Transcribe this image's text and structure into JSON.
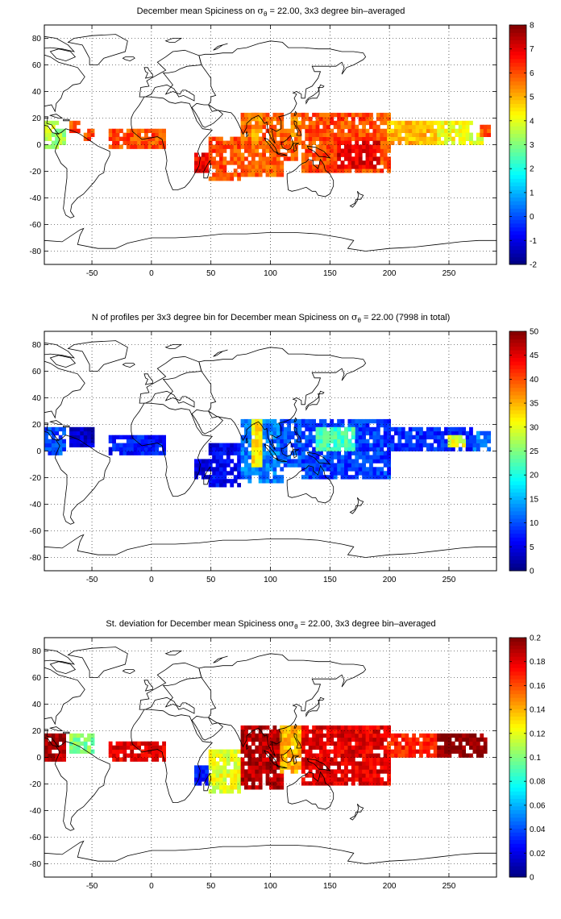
{
  "chart_data": [
    {
      "type": "heatmap",
      "title": {
        "prefix": "December mean Spiciness on ",
        "symbol": "σ",
        "subscript": "θ",
        "suffix": " = 22.00, 3x3 degree bin–averaged"
      },
      "xlim": [
        -90,
        290
      ],
      "ylim": [
        -90,
        90
      ],
      "xticks": [
        -50,
        0,
        50,
        100,
        150,
        200,
        250
      ],
      "yticks": [
        -80,
        -60,
        -40,
        -20,
        0,
        20,
        40,
        60,
        80
      ],
      "grid": "dotted",
      "colorbar": {
        "min": -2,
        "max": 8,
        "ticks": [
          -2,
          -1,
          0,
          1,
          2,
          3,
          4,
          5,
          6,
          7,
          8
        ],
        "colormap": "jet",
        "placement": "right"
      },
      "regions": [
        {
          "lon": [
            -88,
            -80
          ],
          "lat": [
            -2,
            16
          ],
          "value": 3.6
        },
        {
          "lon": [
            -80,
            -73
          ],
          "lat": [
            2,
            10
          ],
          "value": 3.3
        },
        {
          "lon": [
            -68,
            -62
          ],
          "lat": [
            10,
            16
          ],
          "value": 6.0
        },
        {
          "lon": [
            -55,
            -48
          ],
          "lat": [
            5,
            12
          ],
          "value": 6.0
        },
        {
          "lon": [
            -35,
            10
          ],
          "lat": [
            -2,
            12
          ],
          "value": 6.0
        },
        {
          "lon": [
            38,
            50
          ],
          "lat": [
            -20,
            -6
          ],
          "value": 6.8
        },
        {
          "lon": [
            50,
            75
          ],
          "lat": [
            -25,
            5
          ],
          "value": 6.0
        },
        {
          "lon": [
            75,
            110
          ],
          "lat": [
            -22,
            22
          ],
          "value": 5.8
        },
        {
          "lon": [
            84,
            92
          ],
          "lat": [
            5,
            22
          ],
          "value": 5.2
        },
        {
          "lon": [
            110,
            122
          ],
          "lat": [
            -12,
            10
          ],
          "value": 6.0
        },
        {
          "lon": [
            118,
            128
          ],
          "lat": [
            0,
            22
          ],
          "value": 5.4
        },
        {
          "lon": [
            128,
            200
          ],
          "lat": [
            -20,
            22
          ],
          "value": 6.0
        },
        {
          "lon": [
            158,
            192
          ],
          "lat": [
            -18,
            2
          ],
          "value": 7.0
        },
        {
          "lon": [
            200,
            240
          ],
          "lat": [
            2,
            18
          ],
          "value": 5.0
        },
        {
          "lon": [
            240,
            270
          ],
          "lat": [
            0,
            16
          ],
          "value": 4.2
        },
        {
          "lon": [
            266,
            278
          ],
          "lat": [
            0,
            8
          ],
          "value": 3.8
        },
        {
          "lon": [
            278,
            285
          ],
          "lat": [
            8,
            14
          ],
          "value": 6.0
        }
      ]
    },
    {
      "type": "heatmap",
      "title": {
        "prefix": "N of profiles per 3x3 degree bin for December mean Spiciness on ",
        "symbol": "σ",
        "subscript": "θ",
        "suffix": " = 22.00 (7998 in total)"
      },
      "xlim": [
        -90,
        290
      ],
      "ylim": [
        -90,
        90
      ],
      "xticks": [
        -50,
        0,
        50,
        100,
        150,
        200,
        250
      ],
      "yticks": [
        -80,
        -60,
        -40,
        -20,
        0,
        20,
        40,
        60,
        80
      ],
      "grid": "dotted",
      "colorbar": {
        "min": 0,
        "max": 50,
        "ticks": [
          0,
          5,
          10,
          15,
          20,
          25,
          30,
          35,
          40,
          45,
          50
        ],
        "colormap": "jet",
        "placement": "right"
      },
      "regions": [
        {
          "lon": [
            -88,
            -73
          ],
          "lat": [
            -2,
            16
          ],
          "value": 10
        },
        {
          "lon": [
            -68,
            -48
          ],
          "lat": [
            5,
            16
          ],
          "value": 4
        },
        {
          "lon": [
            -35,
            10
          ],
          "lat": [
            -2,
            12
          ],
          "value": 7
        },
        {
          "lon": [
            38,
            50
          ],
          "lat": [
            -20,
            -6
          ],
          "value": 4
        },
        {
          "lon": [
            50,
            75
          ],
          "lat": [
            -25,
            5
          ],
          "value": 6
        },
        {
          "lon": [
            75,
            110
          ],
          "lat": [
            -22,
            22
          ],
          "value": 12
        },
        {
          "lon": [
            84,
            92
          ],
          "lat": [
            -10,
            22
          ],
          "value": 32
        },
        {
          "lon": [
            110,
            128
          ],
          "lat": [
            -12,
            22
          ],
          "value": 10
        },
        {
          "lon": [
            128,
            200
          ],
          "lat": [
            -20,
            22
          ],
          "value": 9
        },
        {
          "lon": [
            140,
            170
          ],
          "lat": [
            0,
            18
          ],
          "value": 22
        },
        {
          "lon": [
            200,
            270
          ],
          "lat": [
            0,
            18
          ],
          "value": 8
        },
        {
          "lon": [
            250,
            262
          ],
          "lat": [
            4,
            12
          ],
          "value": 30
        },
        {
          "lon": [
            270,
            285
          ],
          "lat": [
            0,
            14
          ],
          "value": 12
        }
      ]
    },
    {
      "type": "heatmap",
      "title": {
        "prefix": "St. deviation for December mean Spiciness on",
        "symbol": "σ",
        "subscript": "θ",
        "suffix": " = 22.00, 3x3 degree bin–averaged"
      },
      "xlim": [
        -90,
        290
      ],
      "ylim": [
        -90,
        90
      ],
      "xticks": [
        -50,
        0,
        50,
        100,
        150,
        200,
        250
      ],
      "yticks": [
        -80,
        -60,
        -40,
        -20,
        0,
        20,
        40,
        60,
        80
      ],
      "grid": "dotted",
      "colorbar": {
        "min": 0,
        "max": 0.2,
        "ticks": [
          0,
          0.02,
          0.04,
          0.06,
          0.08,
          0.1,
          0.12,
          0.14,
          0.16,
          0.18,
          0.2
        ],
        "colormap": "jet",
        "placement": "right"
      },
      "regions": [
        {
          "lon": [
            -88,
            -73
          ],
          "lat": [
            -2,
            16
          ],
          "value": 0.19
        },
        {
          "lon": [
            -68,
            -48
          ],
          "lat": [
            5,
            16
          ],
          "value": 0.1
        },
        {
          "lon": [
            -35,
            10
          ],
          "lat": [
            -2,
            12
          ],
          "value": 0.18
        },
        {
          "lon": [
            38,
            50
          ],
          "lat": [
            -20,
            -6
          ],
          "value": 0.03
        },
        {
          "lon": [
            50,
            75
          ],
          "lat": [
            -25,
            5
          ],
          "value": 0.12
        },
        {
          "lon": [
            75,
            110
          ],
          "lat": [
            -22,
            22
          ],
          "value": 0.19
        },
        {
          "lon": [
            110,
            128
          ],
          "lat": [
            -12,
            22
          ],
          "value": 0.14
        },
        {
          "lon": [
            128,
            200
          ],
          "lat": [
            -20,
            22
          ],
          "value": 0.18
        },
        {
          "lon": [
            200,
            240
          ],
          "lat": [
            2,
            18
          ],
          "value": 0.17
        },
        {
          "lon": [
            240,
            280
          ],
          "lat": [
            0,
            16
          ],
          "value": 0.2
        }
      ]
    }
  ]
}
